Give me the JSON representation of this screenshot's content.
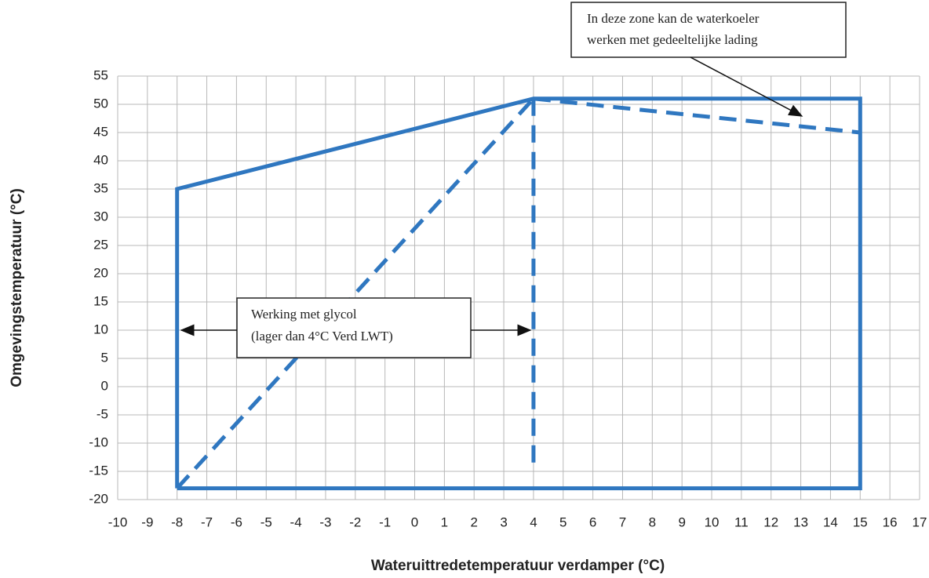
{
  "chart_data": {
    "type": "line",
    "x_label": "Wateruittredetemperatuur verdamper (°C)",
    "y_label": "Omgevingstemperatuur (°C)",
    "xlim": [
      -10,
      17
    ],
    "ylim": [
      -20,
      55
    ],
    "xticks": [
      -10,
      -9,
      -8,
      -7,
      -6,
      -5,
      -4,
      -3,
      -2,
      -1,
      0,
      1,
      2,
      3,
      4,
      5,
      6,
      7,
      8,
      9,
      10,
      11,
      12,
      13,
      14,
      15,
      16,
      17
    ],
    "yticks": [
      -20,
      -15,
      -10,
      -5,
      0,
      5,
      10,
      15,
      20,
      25,
      30,
      35,
      40,
      45,
      50,
      55
    ],
    "grid": true,
    "series": [
      {
        "color": "#2f77c0",
        "style": "solid",
        "x": [
          -8,
          -8,
          4,
          15,
          15,
          -8
        ],
        "values": [
          -18,
          35,
          51,
          51,
          -18,
          -18
        ]
      },
      {
        "color": "#2f77c0",
        "style": "dashed",
        "x": [
          -8,
          4
        ],
        "values": [
          -18,
          51
        ]
      },
      {
        "color": "#2f77c0",
        "style": "dashed",
        "x": [
          4,
          4
        ],
        "values": [
          51,
          -15
        ]
      },
      {
        "color": "#2f77c0",
        "style": "dashed",
        "x": [
          4,
          15
        ],
        "values": [
          51,
          45
        ]
      }
    ],
    "annotations": [
      {
        "lines": [
          "In deze zone kan de waterkoeler",
          "werken met gedeeltelijke lading"
        ]
      },
      {
        "lines": [
          "Werking met glycol",
          "(lager dan 4°C Verd LWT)"
        ]
      }
    ]
  }
}
